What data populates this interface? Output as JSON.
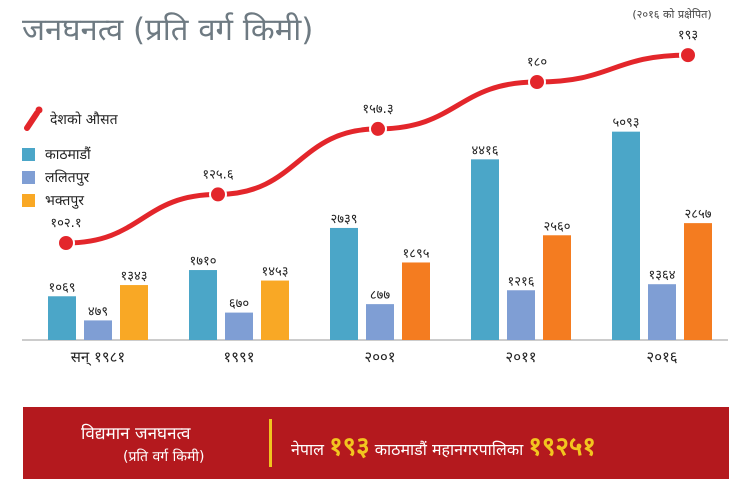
{
  "title": "जनघनत्व (प्रति वर्ग किमी)",
  "note": "(२०१६ को प्रक्षेपित)",
  "legend": {
    "national": "देशको औसत",
    "kathmandu": "काठमाडौं",
    "lalitpur": "ललितपुर",
    "bhaktapur": "भक्तपुर"
  },
  "colors": {
    "kathmandu": "#4ba6c8",
    "lalitpur": "#7f9ed4",
    "bhaktapur": "#f9a825",
    "bhaktapur_later": "#f47c20",
    "national": "#e3262b",
    "banner": "#b4191e",
    "highlight": "#f2c51f"
  },
  "chart_data": {
    "type": "bar",
    "categories": [
      "सन् १९८१",
      "१९९१",
      "२००१",
      "२०११",
      "२०१६"
    ],
    "series": [
      {
        "name": "काठमाडौं",
        "values": [
          1069,
          1710,
          2739,
          4416,
          5093
        ],
        "labels": [
          "१०६९",
          "१७१०",
          "२७३९",
          "४४१६",
          "५०९३"
        ]
      },
      {
        "name": "ललितपुर",
        "values": [
          479,
          670,
          877,
          1216,
          1364
        ],
        "labels": [
          "४७९",
          "६७०",
          "८७७",
          "१२१६",
          "१३६४"
        ]
      },
      {
        "name": "भक्तपुर",
        "values": [
          1343,
          1453,
          1895,
          2560,
          2857
        ],
        "labels": [
          "१३४३",
          "१४५३",
          "१८९५",
          "२५६०",
          "२८५७"
        ]
      }
    ],
    "line": {
      "name": "देशको औसत",
      "values": [
        102.1,
        125.6,
        157.3,
        180,
        193
      ],
      "labels": [
        "१०२.१",
        "१२५.६",
        "१५७.३",
        "१८०",
        "१९३"
      ]
    },
    "ylim": [
      0,
      5500
    ],
    "line_ylim": [
      60,
      210
    ]
  },
  "banner": {
    "line1": "विद्यमान जनघनत्व",
    "line2": "(प्रति वर्ग किमी)",
    "nepal_label": "नेपाल",
    "nepal_value": "१९३",
    "ktm_label": "काठमाडौं महानगरपालिका",
    "ktm_value": "१९२५१"
  }
}
